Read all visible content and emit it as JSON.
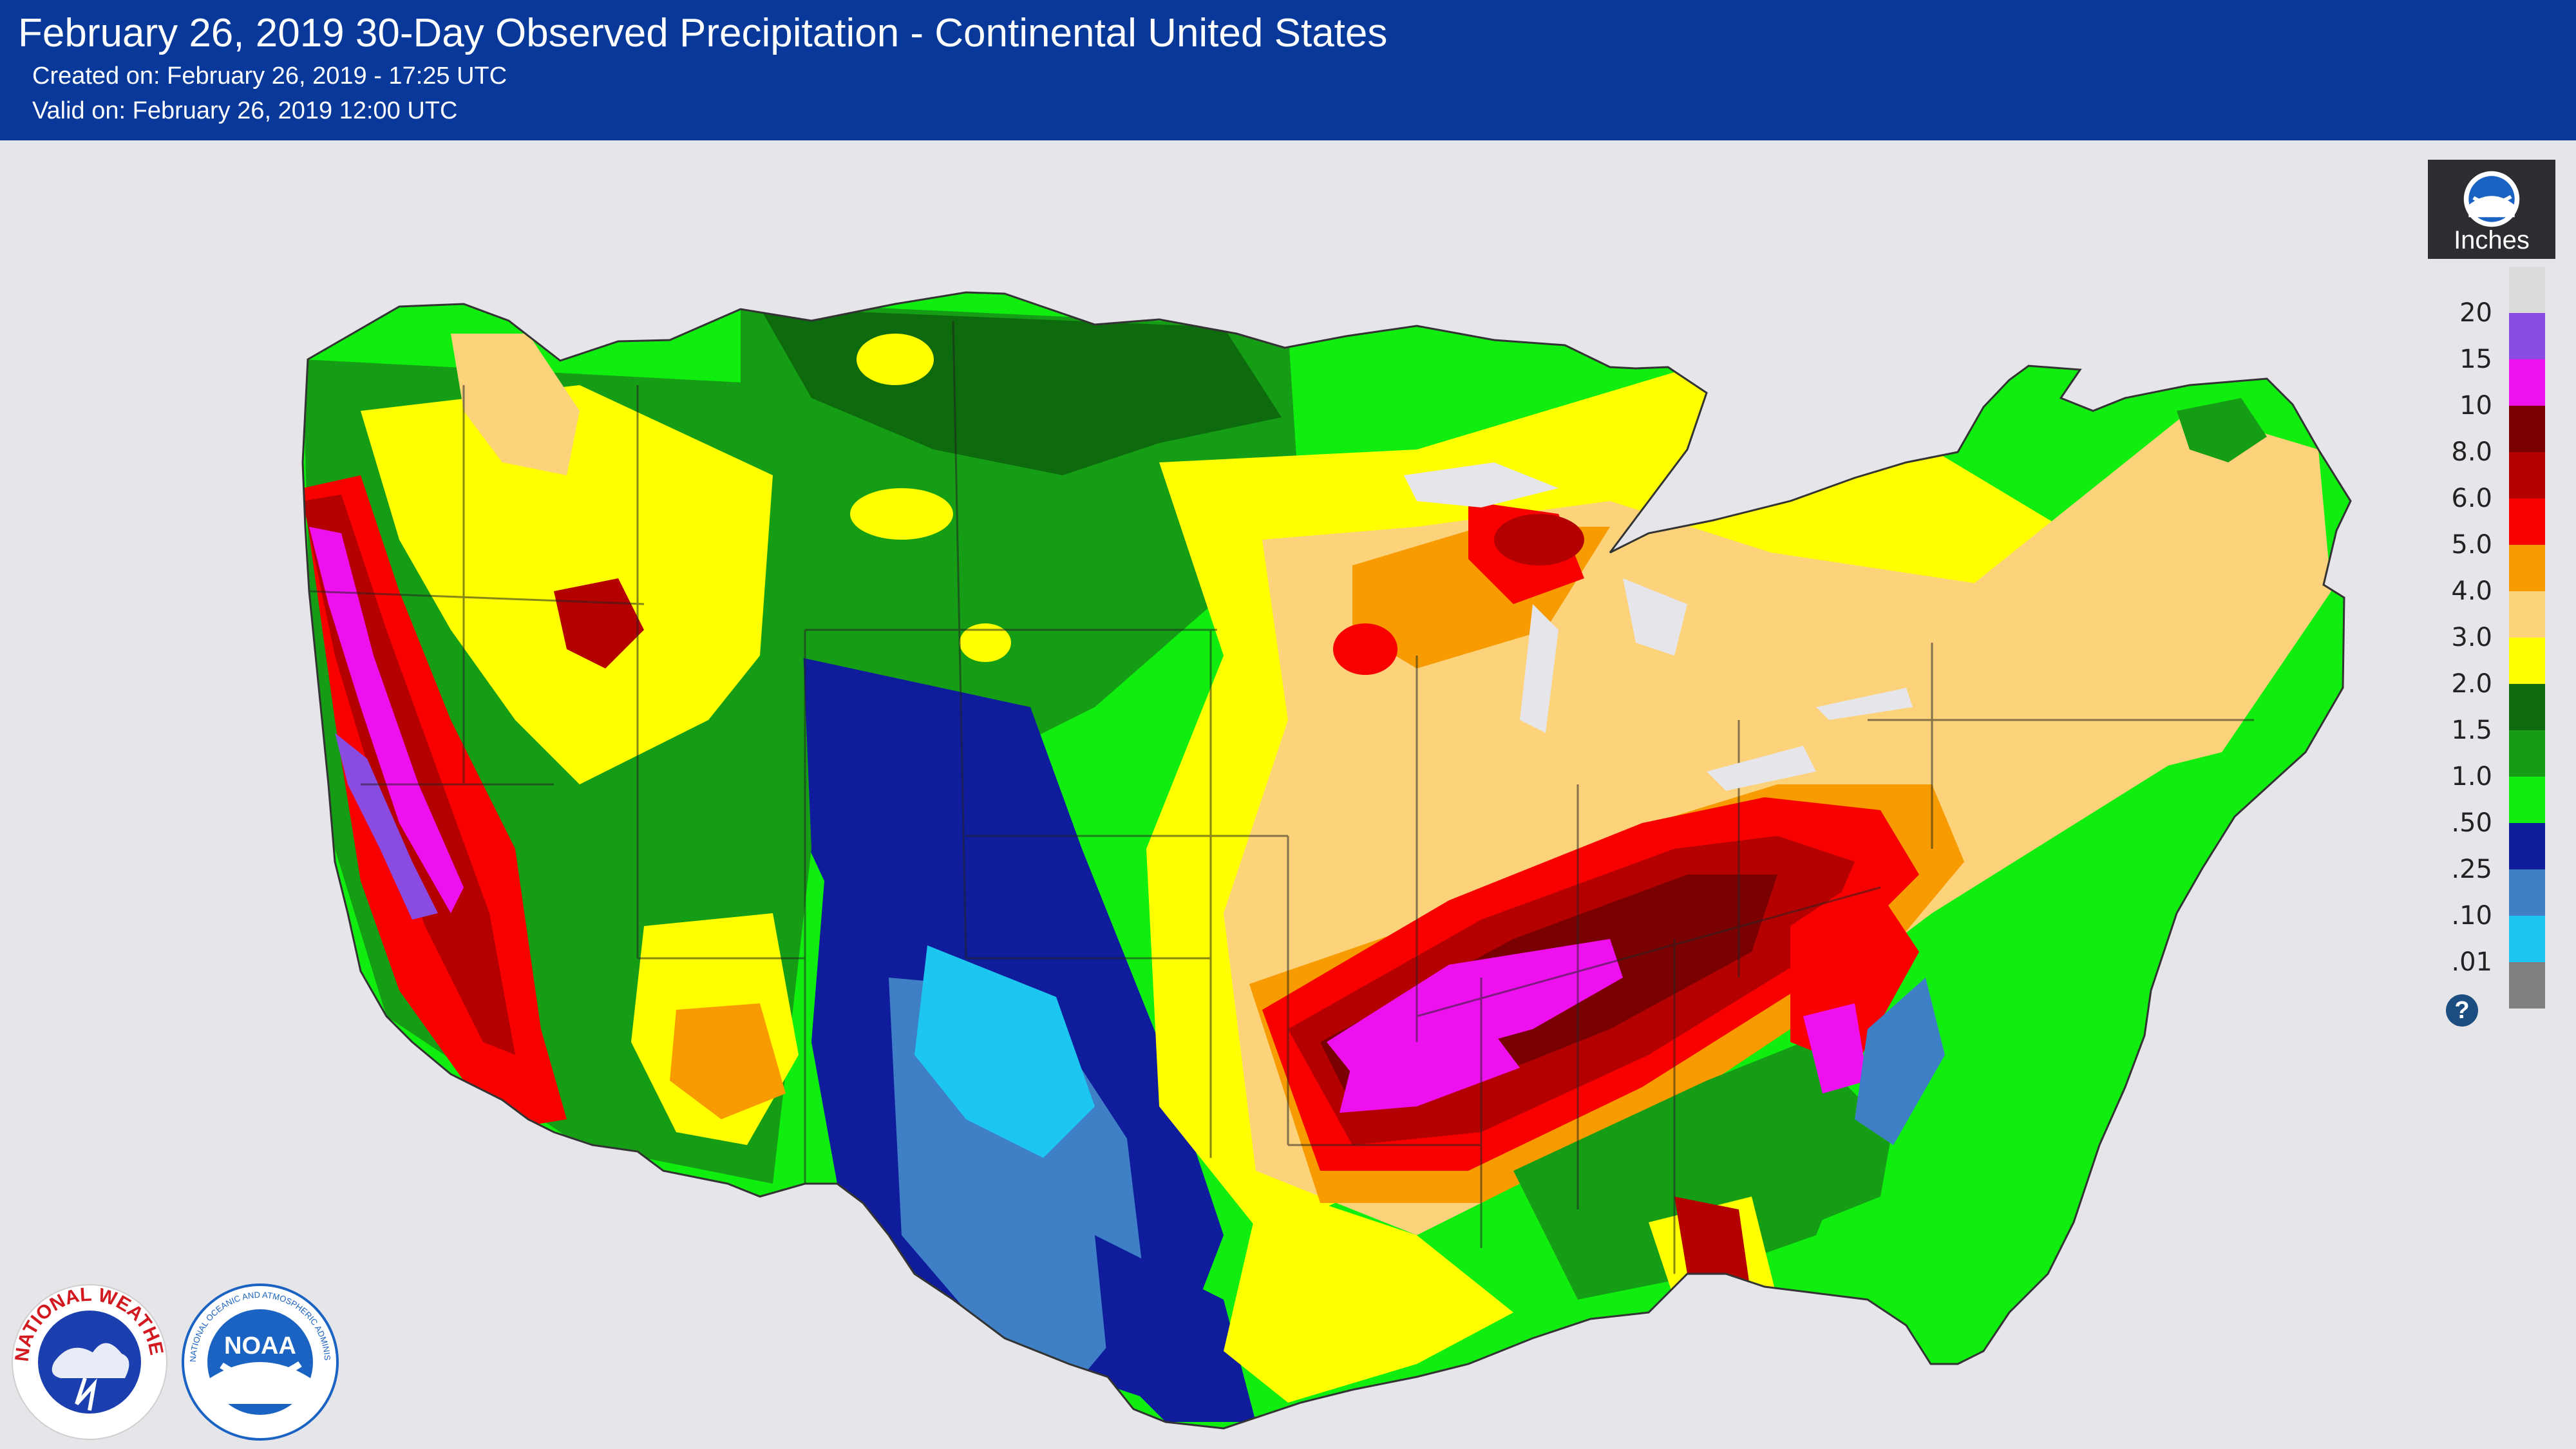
{
  "header": {
    "title": "February 26, 2019 30-Day Observed Precipitation - Continental United States",
    "created": "Created on: February 26, 2019 - 17:25 UTC",
    "valid": "Valid on: February 26, 2019 12:00 UTC"
  },
  "legend": {
    "unit": "Inches",
    "icon": "noaa-emblem-icon",
    "help_icon": "question-mark-icon",
    "bins": [
      {
        "label": "",
        "color": "#dcdcdc"
      },
      {
        "label": "20",
        "color": "#8a4be0"
      },
      {
        "label": "15",
        "color": "#ef10ef"
      },
      {
        "label": "10",
        "color": "#7a0000"
      },
      {
        "label": "8.0",
        "color": "#b50000"
      },
      {
        "label": "6.0",
        "color": "#f80000"
      },
      {
        "label": "5.0",
        "color": "#f79b00"
      },
      {
        "label": "4.0",
        "color": "#fcd27a"
      },
      {
        "label": "3.0",
        "color": "#ffff00"
      },
      {
        "label": "2.0",
        "color": "#0d6a0d"
      },
      {
        "label": "1.5",
        "color": "#159e15"
      },
      {
        "label": "1.0",
        "color": "#10ee10"
      },
      {
        "label": ".50",
        "color": "#0f1c9b"
      },
      {
        "label": ".25",
        "color": "#3f7fc6"
      },
      {
        "label": ".10",
        "color": "#1dc5f1"
      },
      {
        "label": ".01",
        "color": "#7f7f7f"
      }
    ]
  },
  "logos": {
    "nws": {
      "text": "NATIONAL WEATHER SERVICE",
      "icon": "nws-logo"
    },
    "noaa": {
      "text": "NOAA",
      "ring_text": "NATIONAL OCEANIC AND ATMOSPHERIC ADMINISTRATION · U.S. DEPARTMENT OF COMMERCE",
      "icon": "noaa-logo"
    }
  }
}
